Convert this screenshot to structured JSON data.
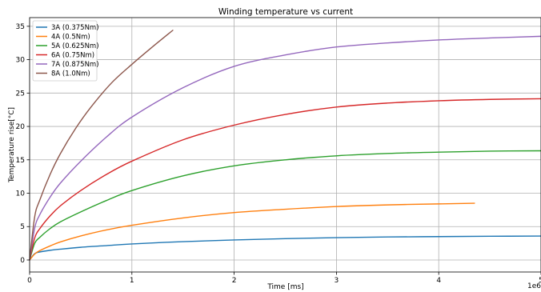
{
  "chart_data": {
    "type": "line",
    "title": "Winding temperature vs current",
    "xlabel": "Time [ms]",
    "ylabel": "Temperature rise[°C]",
    "x_offset_label": "1e6",
    "xlim": [
      0,
      5
    ],
    "ylim": [
      -1.8,
      36.3
    ],
    "xticks": [
      0,
      1,
      2,
      3,
      4,
      5
    ],
    "xtick_labels": [
      "0",
      "1",
      "2",
      "3",
      "4",
      "5"
    ],
    "yticks": [
      0,
      5,
      10,
      15,
      20,
      25,
      30,
      35
    ],
    "ytick_labels": [
      "0",
      "5",
      "10",
      "15",
      "20",
      "25",
      "30",
      "35"
    ],
    "grid": true,
    "legend_position": "top-left",
    "series": [
      {
        "name": "3A (0.375Nm)",
        "color": "#1f77b4",
        "x": [
          0,
          0.05,
          0.1,
          0.2,
          0.3,
          0.5,
          0.75,
          1,
          1.5,
          2,
          2.5,
          3,
          3.5,
          4,
          4.5,
          5
        ],
        "y": [
          0,
          0.95,
          1.2,
          1.45,
          1.62,
          1.9,
          2.15,
          2.4,
          2.75,
          3.0,
          3.2,
          3.35,
          3.45,
          3.5,
          3.55,
          3.58
        ]
      },
      {
        "name": "4A (0.5Nm)",
        "color": "#ff7f0e",
        "x": [
          0,
          0.05,
          0.1,
          0.2,
          0.3,
          0.5,
          0.75,
          1,
          1.5,
          2,
          2.5,
          3,
          3.5,
          4,
          4.35
        ],
        "y": [
          0,
          0.9,
          1.4,
          2.1,
          2.7,
          3.6,
          4.5,
          5.2,
          6.3,
          7.1,
          7.6,
          8.0,
          8.25,
          8.4,
          8.5
        ]
      },
      {
        "name": "5A (0.625Nm)",
        "color": "#2ca02c",
        "x": [
          0,
          0.05,
          0.1,
          0.2,
          0.3,
          0.5,
          0.75,
          1,
          1.5,
          2,
          2.5,
          3,
          3.5,
          4,
          4.5,
          5
        ],
        "y": [
          0,
          2.5,
          3.4,
          4.7,
          5.7,
          7.2,
          8.9,
          10.4,
          12.6,
          14.1,
          15.0,
          15.6,
          15.95,
          16.15,
          16.3,
          16.35
        ]
      },
      {
        "name": "6A (0.75Nm)",
        "color": "#d62728",
        "x": [
          0,
          0.05,
          0.1,
          0.2,
          0.3,
          0.5,
          0.75,
          1,
          1.5,
          2,
          2.5,
          3,
          3.5,
          4,
          4.5,
          5
        ],
        "y": [
          0,
          3.3,
          4.7,
          6.6,
          8.1,
          10.4,
          12.8,
          14.8,
          18.0,
          20.2,
          21.8,
          22.9,
          23.5,
          23.85,
          24.05,
          24.15
        ]
      },
      {
        "name": "7A (0.875Nm)",
        "color": "#9467bd",
        "x": [
          0,
          0.05,
          0.1,
          0.2,
          0.3,
          0.5,
          0.75,
          1,
          1.5,
          2,
          2.5,
          3,
          3.5,
          4,
          4.5,
          5
        ],
        "y": [
          0,
          4.8,
          6.8,
          9.4,
          11.5,
          14.8,
          18.4,
          21.4,
          25.8,
          29.0,
          30.7,
          31.9,
          32.5,
          32.95,
          33.25,
          33.5
        ]
      },
      {
        "name": "8A (1.0Nm)",
        "color": "#8c564b",
        "x": [
          0,
          0.05,
          0.1,
          0.2,
          0.3,
          0.45,
          0.6,
          0.8,
          1,
          1.2,
          1.4
        ],
        "y": [
          0,
          6.5,
          9.0,
          12.8,
          15.9,
          19.7,
          22.9,
          26.5,
          29.3,
          31.9,
          34.4
        ]
      }
    ]
  }
}
